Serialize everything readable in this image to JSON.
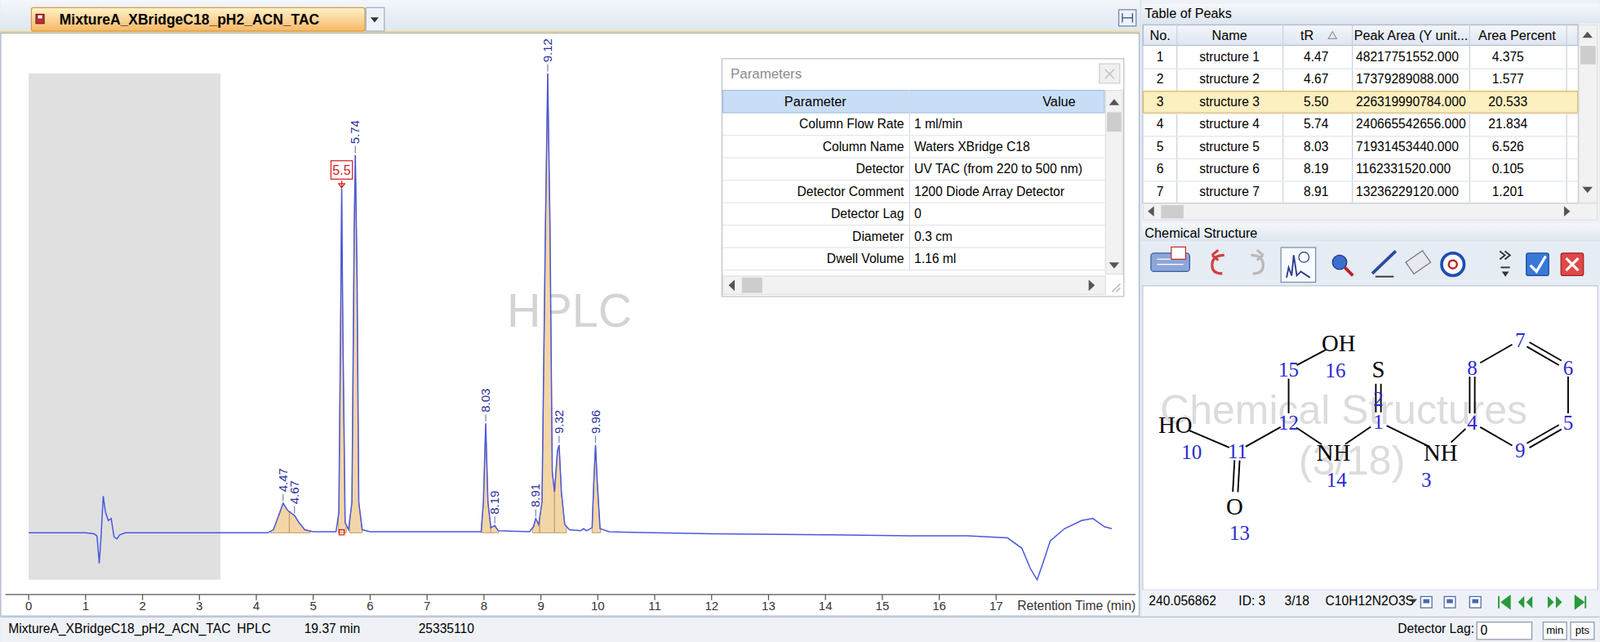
{
  "tab": {
    "title": "MixtureA_XBridgeC18_pH2_ACN_TAC"
  },
  "chart_data": {
    "type": "line",
    "watermark": "HPLC",
    "xlabel": "Retention Time (min)",
    "xlim": [
      -0.41,
      19.45
    ],
    "ylim": [
      -60,
      490
    ],
    "xticks": [
      0,
      1,
      2,
      3,
      4,
      5,
      6,
      7,
      8,
      9,
      10,
      11,
      12,
      13,
      14,
      15,
      16,
      17
    ],
    "tick_labels": "x",
    "color": "#4a58dc",
    "grid": false,
    "excluded_range": [
      0,
      3.37
    ],
    "x": [
      0,
      1.0,
      1.15,
      1.2,
      1.24,
      1.27,
      1.31,
      1.35,
      1.4,
      1.45,
      1.5,
      1.55,
      1.6,
      1.7,
      3.0,
      4.2,
      4.3,
      4.4,
      4.47,
      4.55,
      4.67,
      4.75,
      4.85,
      5.0,
      5.4,
      5.45,
      5.48,
      5.5,
      5.52,
      5.56,
      5.62,
      5.68,
      5.72,
      5.74,
      5.77,
      5.8,
      5.86,
      6.0,
      7.95,
      7.99,
      8.03,
      8.07,
      8.12,
      8.19,
      8.25,
      8.8,
      8.87,
      8.91,
      8.96,
      9.02,
      9.08,
      9.12,
      9.16,
      9.2,
      9.24,
      9.29,
      9.32,
      9.36,
      9.42,
      9.5,
      9.7,
      9.75,
      9.8,
      9.9,
      9.93,
      9.96,
      9.99,
      10.04,
      10.2,
      11,
      12,
      14,
      15.5,
      16.5,
      17.2,
      17.45,
      17.6,
      17.72,
      17.82,
      17.95,
      18.2,
      18.5,
      18.7,
      18.9,
      19.03
    ],
    "values": [
      0,
      0,
      -1,
      -3,
      -30,
      -5,
      36,
      20,
      12,
      14,
      -4,
      -6,
      -2,
      0,
      0,
      0,
      3,
      18,
      29,
      22,
      17,
      10,
      3,
      1,
      1,
      20,
      200,
      337,
      200,
      10,
      3,
      30,
      300,
      370,
      250,
      30,
      3,
      1,
      1,
      30,
      107,
      30,
      5,
      7,
      2,
      1,
      6,
      14,
      8,
      30,
      300,
      450,
      300,
      60,
      40,
      80,
      86,
      40,
      8,
      3,
      2,
      4,
      2,
      5,
      50,
      86,
      50,
      4,
      1,
      0,
      -1,
      -2,
      -3,
      -3,
      -5,
      -15,
      -35,
      -46,
      -30,
      -8,
      4,
      12,
      14,
      6,
      4
    ],
    "peaks": [
      {
        "tR": 4.47,
        "start": 4.25,
        "end": 4.58,
        "selected": false
      },
      {
        "tR": 4.67,
        "start": 4.58,
        "end": 4.95,
        "selected": false
      },
      {
        "tR": 5.5,
        "start": 5.44,
        "end": 5.58,
        "selected": true
      },
      {
        "tR": 5.74,
        "start": 5.64,
        "end": 5.86,
        "selected": false
      },
      {
        "tR": 8.03,
        "start": 7.96,
        "end": 8.12,
        "selected": false
      },
      {
        "tR": 8.19,
        "start": 8.12,
        "end": 8.26,
        "selected": false
      },
      {
        "tR": 8.91,
        "start": 8.85,
        "end": 8.98,
        "selected": false
      },
      {
        "tR": 9.12,
        "start": 8.98,
        "end": 9.24,
        "selected": false
      },
      {
        "tR": 9.32,
        "start": 9.24,
        "end": 9.45,
        "selected": false
      },
      {
        "tR": 9.96,
        "start": 9.9,
        "end": 10.05,
        "selected": false
      }
    ]
  },
  "parameters": {
    "title": "Parameters",
    "header": [
      "Parameter",
      "Value"
    ],
    "rows": [
      [
        "Column Flow Rate",
        "1 ml/min"
      ],
      [
        "Column Name",
        "Waters XBridge C18"
      ],
      [
        "Detector",
        "UV TAC (from 220 to 500 nm)"
      ],
      [
        "Detector Comment",
        "1200 Diode Array Detector"
      ],
      [
        "Detector Lag",
        "0"
      ],
      [
        "Diameter",
        "0.3 cm"
      ],
      [
        "Dwell Volume",
        "1.16 ml"
      ]
    ]
  },
  "peak_table": {
    "title": "Table of Peaks",
    "header": [
      "No.",
      "Name",
      "tR",
      "Peak Area (Y unit...",
      "Area Percent"
    ],
    "selected_row": 2,
    "rows": [
      [
        "1",
        "structure 1",
        "4.47",
        "48217751552.000",
        "4.375"
      ],
      [
        "2",
        "structure 2",
        "4.67",
        "17379289088.000",
        "1.577"
      ],
      [
        "3",
        "structure 3",
        "5.50",
        "226319990784.000",
        "20.533"
      ],
      [
        "4",
        "structure 4",
        "5.74",
        "240665542656.000",
        "21.834"
      ],
      [
        "5",
        "structure 5",
        "8.03",
        "71931453440.000",
        "6.526"
      ],
      [
        "6",
        "structure 6",
        "8.19",
        "1162331520.000",
        "0.105"
      ],
      [
        "7",
        "structure 7",
        "8.91",
        "13236229120.000",
        "1.201"
      ]
    ]
  },
  "structure_panel": {
    "title": "Chemical Structure",
    "watermark": [
      "Chemical Structures",
      "(3/18)"
    ],
    "atoms": [
      {
        "label": "",
        "number": "1"
      },
      {
        "label": "S",
        "number": "2"
      },
      {
        "label": "NH",
        "number": "3"
      },
      {
        "label": "",
        "number": "4"
      },
      {
        "label": "",
        "number": "5"
      },
      {
        "label": "",
        "number": "6"
      },
      {
        "label": "",
        "number": "7"
      },
      {
        "label": "",
        "number": "8"
      },
      {
        "label": "",
        "number": "9"
      },
      {
        "label": "HO",
        "number": "10"
      },
      {
        "label": "",
        "number": "11"
      },
      {
        "label": "",
        "number": "12"
      },
      {
        "label": "O",
        "number": "13"
      },
      {
        "label": "NH",
        "number": "14"
      },
      {
        "label": "",
        "number": "15"
      },
      {
        "label": "OH",
        "number": "16"
      }
    ],
    "footer": {
      "mass": "240.056862",
      "id": "ID: 3",
      "index": "3/18",
      "formula": "C10H12N2O3S"
    }
  },
  "status_bar": {
    "name": "MixtureA_XBridgeC18_pH2_ACN_TAC",
    "mode": "HPLC",
    "time": "19.37 min",
    "value": "25335110",
    "detector_lag_label": "Detector Lag:",
    "detector_lag": "0",
    "units": [
      "min",
      "pts"
    ]
  }
}
